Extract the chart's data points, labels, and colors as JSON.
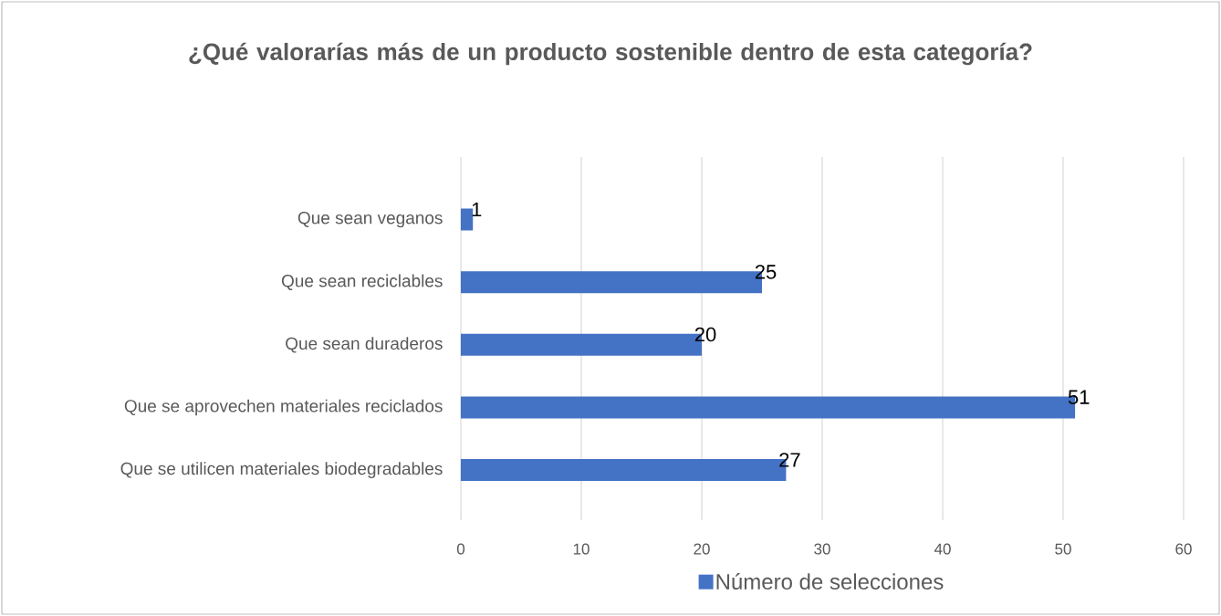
{
  "chart_data": {
    "type": "bar",
    "orientation": "horizontal",
    "title": "¿Qué valorarías más de un producto sostenible dentro de esta categoría?",
    "categories": [
      "Que sean veganos",
      "Que sean reciclables",
      "Que sean duraderos",
      "Que se aprovechen materiales reciclados",
      "Que se utilicen materiales biodegradables"
    ],
    "series": [
      {
        "name": "Número de selecciones",
        "color": "#4472c4",
        "values": [
          1,
          25,
          20,
          51,
          27
        ]
      }
    ],
    "xlim": [
      0,
      60
    ],
    "xticks": [
      0,
      10,
      20,
      30,
      40,
      50,
      60
    ],
    "grid": "x",
    "legend": "bottom",
    "data_labels": true
  }
}
